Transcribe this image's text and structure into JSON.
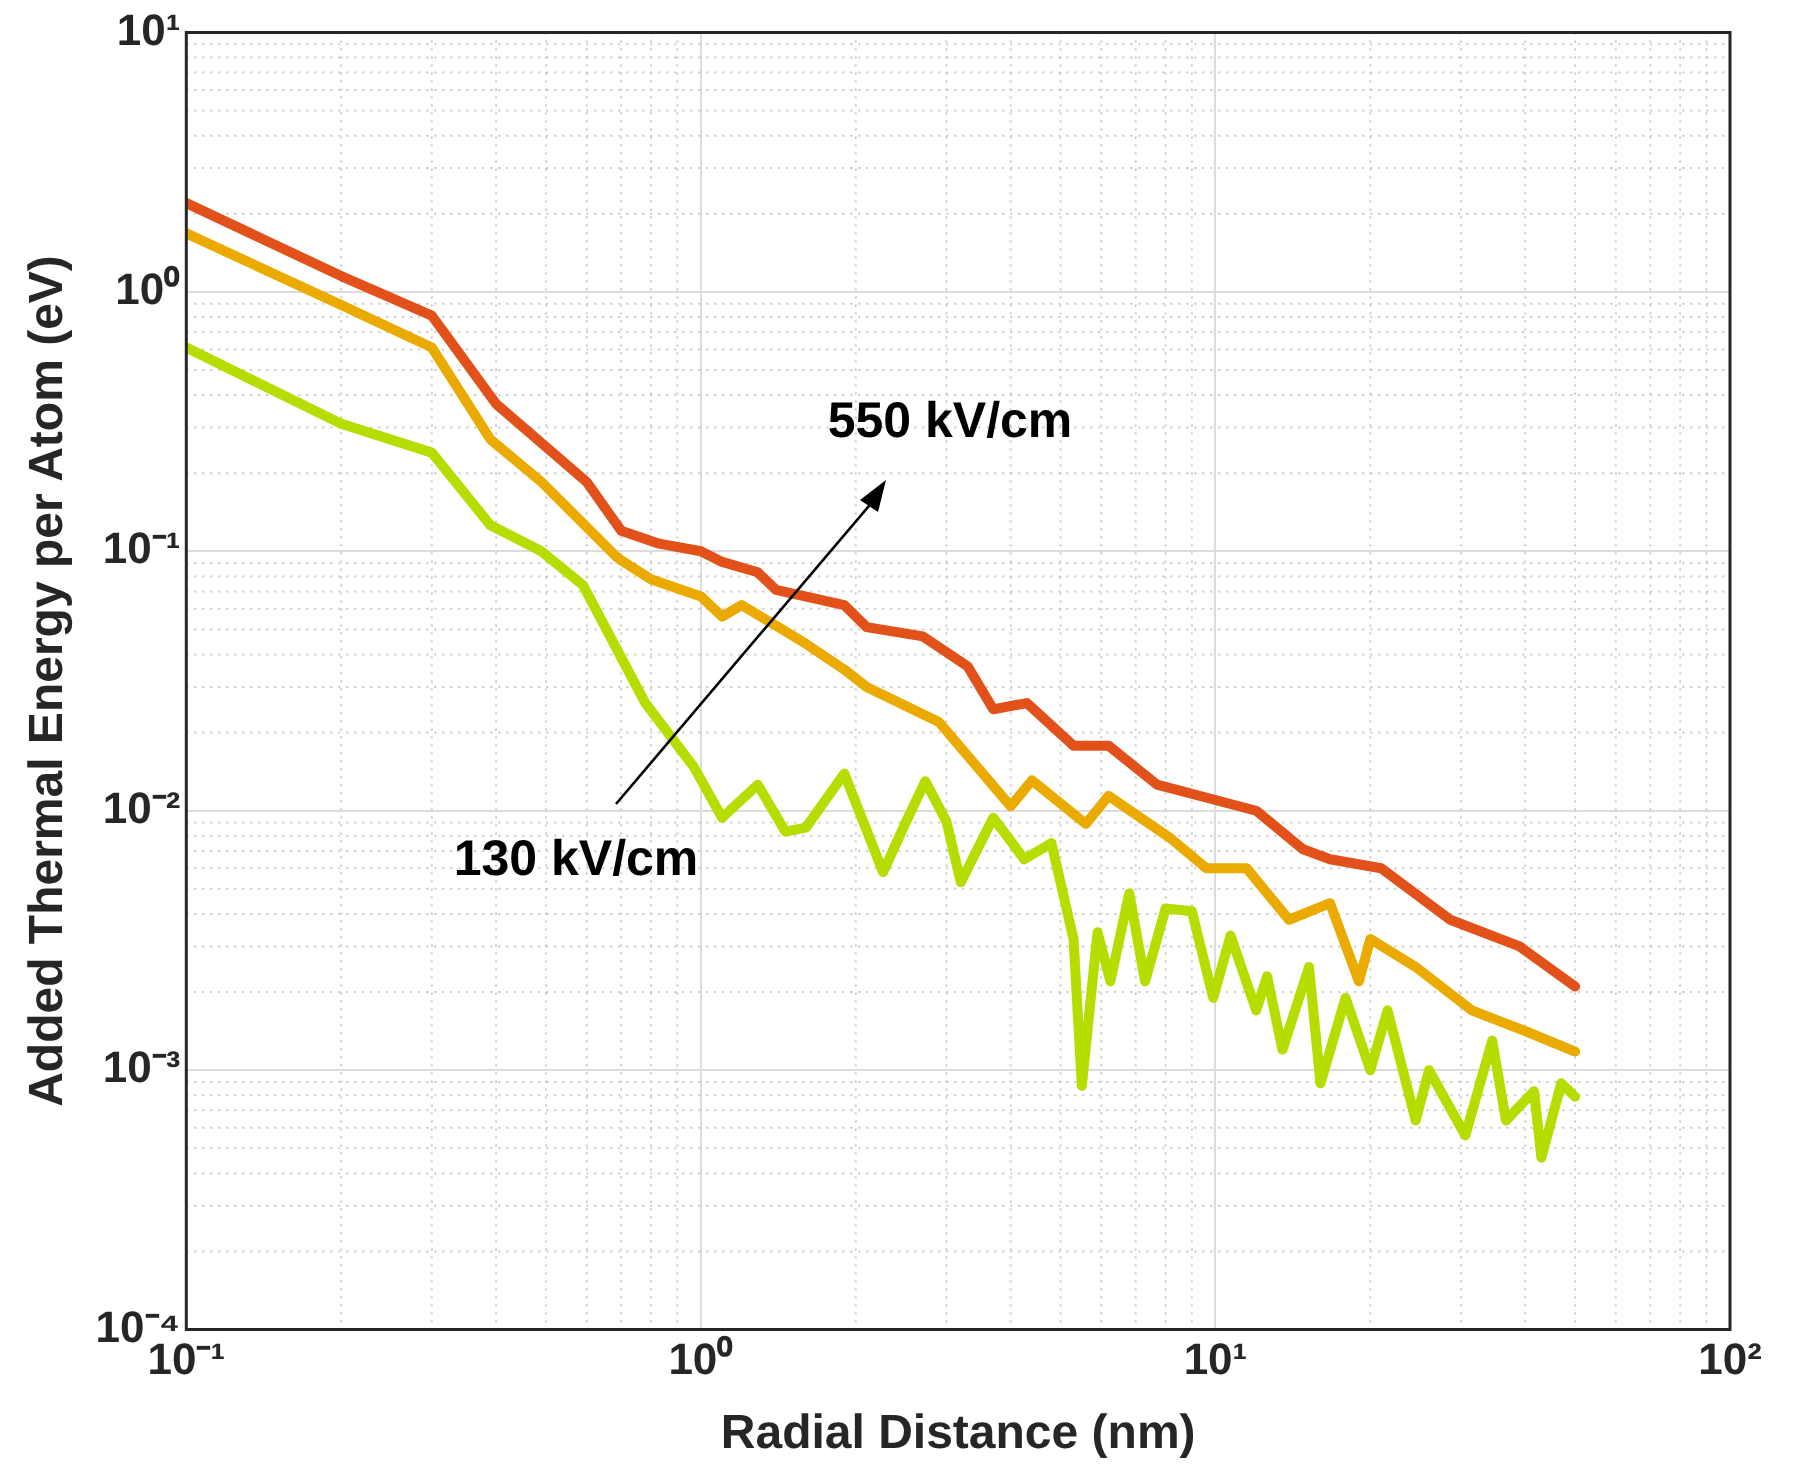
{
  "chart_data": {
    "type": "line",
    "xlabel": "Radial Distance (nm)",
    "ylabel": "Added Thermal Energy per Atom (eV)",
    "log": "xy",
    "grid": true,
    "marker": "none",
    "legend": false,
    "xlim": [
      0.1,
      100
    ],
    "ylim": [
      0.0001,
      10
    ],
    "xticks": [
      {
        "value": 0.1,
        "label": "10⁻¹"
      },
      {
        "value": 1,
        "label": "10⁰"
      },
      {
        "value": 10,
        "label": "10¹"
      },
      {
        "value": 100,
        "label": "10²"
      }
    ],
    "yticks": [
      {
        "value": 0.0001,
        "label": "10⁻⁴"
      },
      {
        "value": 0.001,
        "label": "10⁻³"
      },
      {
        "value": 0.01,
        "label": "10⁻²"
      },
      {
        "value": 0.1,
        "label": "10⁻¹"
      },
      {
        "value": 1,
        "label": "10⁰"
      },
      {
        "value": 10,
        "label": "10¹"
      }
    ],
    "annotations": [
      "550 kV/cm",
      "130 kV/cm"
    ],
    "series": [
      {
        "color": "#e2511a",
        "x": [
          0.1,
          0.2,
          0.3,
          0.4,
          0.6,
          0.7,
          0.83,
          1.0,
          1.1,
          1.29,
          1.4,
          1.9,
          2.1,
          2.7,
          3.3,
          3.7,
          4.3,
          5.3,
          6.2,
          7.7,
          10,
          12,
          14.8,
          16.7,
          21,
          28.6,
          39,
          50
        ],
        "values": [
          2.2,
          1.15,
          0.81,
          0.37,
          0.185,
          0.12,
          0.107,
          0.1,
          0.091,
          0.083,
          0.071,
          0.062,
          0.051,
          0.047,
          0.036,
          0.0246,
          0.026,
          0.0178,
          0.0178,
          0.0126,
          0.011,
          0.01,
          0.0071,
          0.0065,
          0.006,
          0.0038,
          0.003,
          0.0021
        ]
      },
      {
        "color": "#eaaa00",
        "x": [
          0.1,
          0.2,
          0.3,
          0.39,
          0.49,
          0.69,
          0.8,
          1.0,
          1.1,
          1.2,
          1.37,
          1.6,
          1.9,
          2.1,
          2.9,
          4.0,
          4.4,
          5.6,
          6.2,
          8.2,
          9.6,
          11.5,
          13.9,
          16.7,
          19,
          20,
          24.5,
          31.5,
          40.5,
          50
        ],
        "values": [
          1.68,
          0.89,
          0.61,
          0.27,
          0.185,
          0.094,
          0.078,
          0.067,
          0.056,
          0.062,
          0.053,
          0.044,
          0.035,
          0.03,
          0.022,
          0.0104,
          0.0131,
          0.0089,
          0.0114,
          0.0078,
          0.006,
          0.006,
          0.0038,
          0.0044,
          0.0022,
          0.0032,
          0.0025,
          0.0017,
          0.0014,
          0.00118
        ]
      },
      {
        "color": "#b5dd00",
        "x": [
          0.1,
          0.2,
          0.3,
          0.39,
          0.49,
          0.59,
          0.78,
          0.97,
          1.1,
          1.29,
          1.46,
          1.6,
          1.9,
          2.26,
          2.5,
          2.73,
          3.0,
          3.2,
          3.7,
          4.25,
          4.8,
          5.3,
          5.5,
          5.9,
          6.25,
          6.8,
          7.3,
          8.0,
          9.0,
          9.9,
          10.7,
          12,
          12.6,
          13.5,
          15.2,
          16,
          17.9,
          20,
          21.6,
          24.5,
          26,
          30.6,
          34.5,
          36.7,
          41.6,
          43,
          47,
          50
        ],
        "values": [
          0.61,
          0.31,
          0.24,
          0.126,
          0.1,
          0.074,
          0.026,
          0.0147,
          0.0094,
          0.0126,
          0.0083,
          0.0086,
          0.0139,
          0.0058,
          0.009,
          0.013,
          0.0091,
          0.0053,
          0.0094,
          0.0065,
          0.0075,
          0.0032,
          0.00087,
          0.0034,
          0.0022,
          0.0048,
          0.0022,
          0.0042,
          0.0041,
          0.0019,
          0.0033,
          0.0017,
          0.0023,
          0.0012,
          0.0025,
          0.00089,
          0.0019,
          0.001,
          0.0017,
          0.00064,
          0.001,
          0.00056,
          0.0013,
          0.00064,
          0.00083,
          0.00046,
          0.00089,
          0.00079
        ]
      }
    ]
  }
}
